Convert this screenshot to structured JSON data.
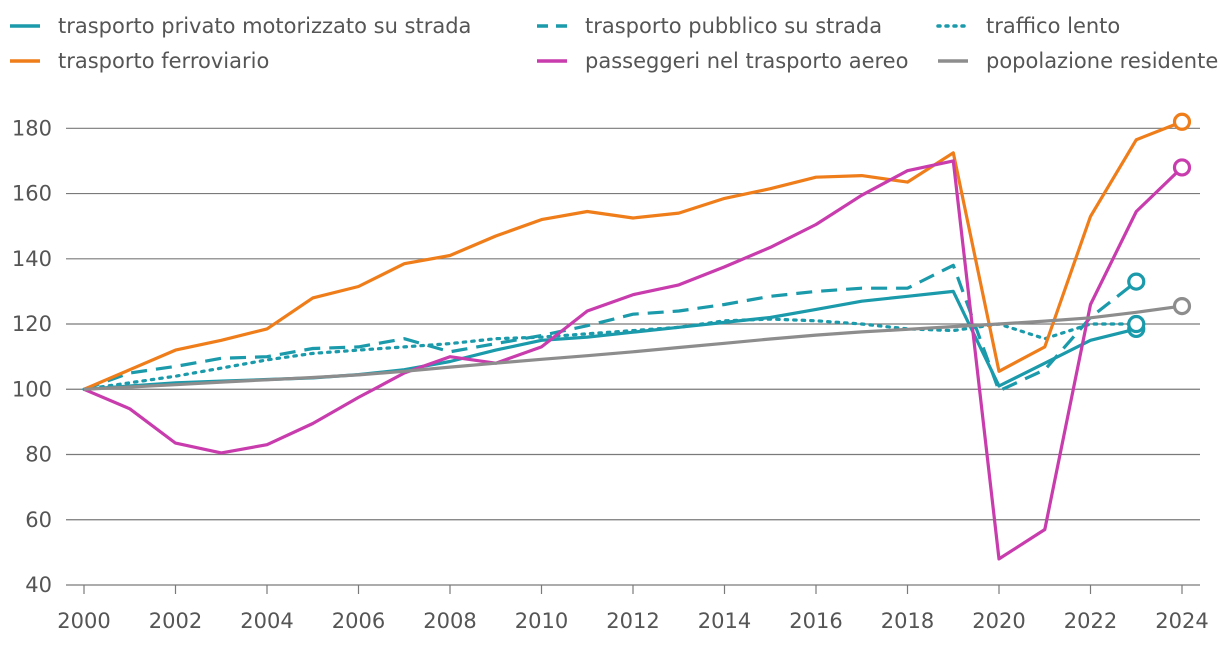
{
  "chart_data": {
    "type": "line",
    "title": "",
    "xlabel": "",
    "ylabel": "",
    "xlim": [
      2000,
      2024
    ],
    "ylim": [
      40,
      185
    ],
    "x_ticks": [
      "2000",
      "2002",
      "2004",
      "2006",
      "2008",
      "2010",
      "2012",
      "2014",
      "2016",
      "2018",
      "2020",
      "2022",
      "2024"
    ],
    "y_ticks": [
      "40",
      "60",
      "80",
      "100",
      "120",
      "140",
      "160",
      "180"
    ],
    "grid": "horizontal",
    "legend_position": "top",
    "series": [
      {
        "name": "trasporto privato motorizzato su strada",
        "color": "#1a9aaa",
        "dash": "solid",
        "end_marker": true,
        "x": [
          2000,
          2001,
          2002,
          2003,
          2004,
          2005,
          2006,
          2007,
          2008,
          2009,
          2010,
          2011,
          2012,
          2013,
          2014,
          2015,
          2016,
          2017,
          2018,
          2019,
          2020,
          2021,
          2022,
          2023
        ],
        "values": [
          100,
          101,
          102,
          102.5,
          103,
          103.5,
          104.5,
          106,
          108.5,
          112,
          115,
          116,
          117.5,
          119,
          120.5,
          122,
          124.5,
          127,
          128.5,
          130,
          101,
          108,
          115,
          118.5
        ]
      },
      {
        "name": "trasporto pubblico su strada",
        "color": "#1a9aaa",
        "dash": "dashed",
        "end_marker": true,
        "x": [
          2000,
          2001,
          2002,
          2003,
          2004,
          2005,
          2006,
          2007,
          2008,
          2009,
          2010,
          2011,
          2012,
          2013,
          2014,
          2015,
          2016,
          2017,
          2018,
          2019,
          2020,
          2021,
          2022,
          2023
        ],
        "values": [
          100,
          105,
          107,
          109.5,
          110,
          112.5,
          113,
          115.5,
          111.5,
          114,
          116.5,
          119.5,
          123,
          124,
          126,
          128.5,
          130,
          131,
          131,
          138,
          99.5,
          106,
          122,
          133
        ]
      },
      {
        "name": "traffico lento",
        "color": "#1a9aaa",
        "dash": "dotted",
        "end_marker": true,
        "x": [
          2000,
          2001,
          2002,
          2003,
          2004,
          2005,
          2006,
          2007,
          2008,
          2009,
          2010,
          2011,
          2012,
          2013,
          2014,
          2015,
          2016,
          2017,
          2018,
          2019,
          2020,
          2021,
          2022,
          2023
        ],
        "values": [
          100,
          102,
          104,
          106.5,
          109,
          111,
          112,
          113,
          114,
          115.5,
          116,
          117,
          118,
          119,
          121,
          121.5,
          121,
          120,
          118.5,
          118,
          120,
          115.5,
          120,
          120
        ]
      },
      {
        "name": "trasporto ferroviario",
        "color": "#ef7d1a",
        "dash": "solid",
        "end_marker": true,
        "x": [
          2000,
          2001,
          2002,
          2003,
          2004,
          2005,
          2006,
          2007,
          2008,
          2009,
          2010,
          2011,
          2012,
          2013,
          2014,
          2015,
          2016,
          2017,
          2018,
          2019,
          2020,
          2021,
          2022,
          2023,
          2024
        ],
        "values": [
          100,
          106,
          112,
          115,
          118.5,
          128,
          131.5,
          138.5,
          141,
          147,
          152,
          154.5,
          152.5,
          154,
          158.5,
          161.5,
          165,
          165.5,
          163.5,
          172.5,
          105.5,
          113,
          153,
          176.5,
          182
        ]
      },
      {
        "name": "passeggeri nel trasporto aereo",
        "color": "#c83cad",
        "dash": "solid",
        "end_marker": true,
        "x": [
          2000,
          2001,
          2002,
          2003,
          2004,
          2005,
          2006,
          2007,
          2008,
          2009,
          2010,
          2011,
          2012,
          2013,
          2014,
          2015,
          2016,
          2017,
          2018,
          2019,
          2020,
          2021,
          2022,
          2023,
          2024
        ],
        "values": [
          100,
          94,
          83.5,
          80.5,
          83,
          89.5,
          97.5,
          105,
          110,
          108,
          113,
          124,
          129,
          132,
          137.5,
          143.5,
          150.5,
          159.5,
          167,
          170,
          48,
          57,
          126,
          154.5,
          168
        ]
      },
      {
        "name": "popolazione residente permanente",
        "color": "#8d8d8d",
        "dash": "solid",
        "end_marker": true,
        "x": [
          2000,
          2001,
          2002,
          2003,
          2004,
          2005,
          2006,
          2007,
          2008,
          2009,
          2010,
          2011,
          2012,
          2013,
          2014,
          2015,
          2016,
          2017,
          2018,
          2019,
          2020,
          2021,
          2022,
          2023,
          2024
        ],
        "values": [
          100,
          100.7,
          101.4,
          102.2,
          102.9,
          103.6,
          104.4,
          105.5,
          106.8,
          108,
          109.2,
          110.3,
          111.5,
          112.8,
          114.1,
          115.4,
          116.6,
          117.6,
          118.4,
          119.2,
          120,
          120.9,
          121.9,
          123.6,
          125.5
        ]
      }
    ]
  }
}
